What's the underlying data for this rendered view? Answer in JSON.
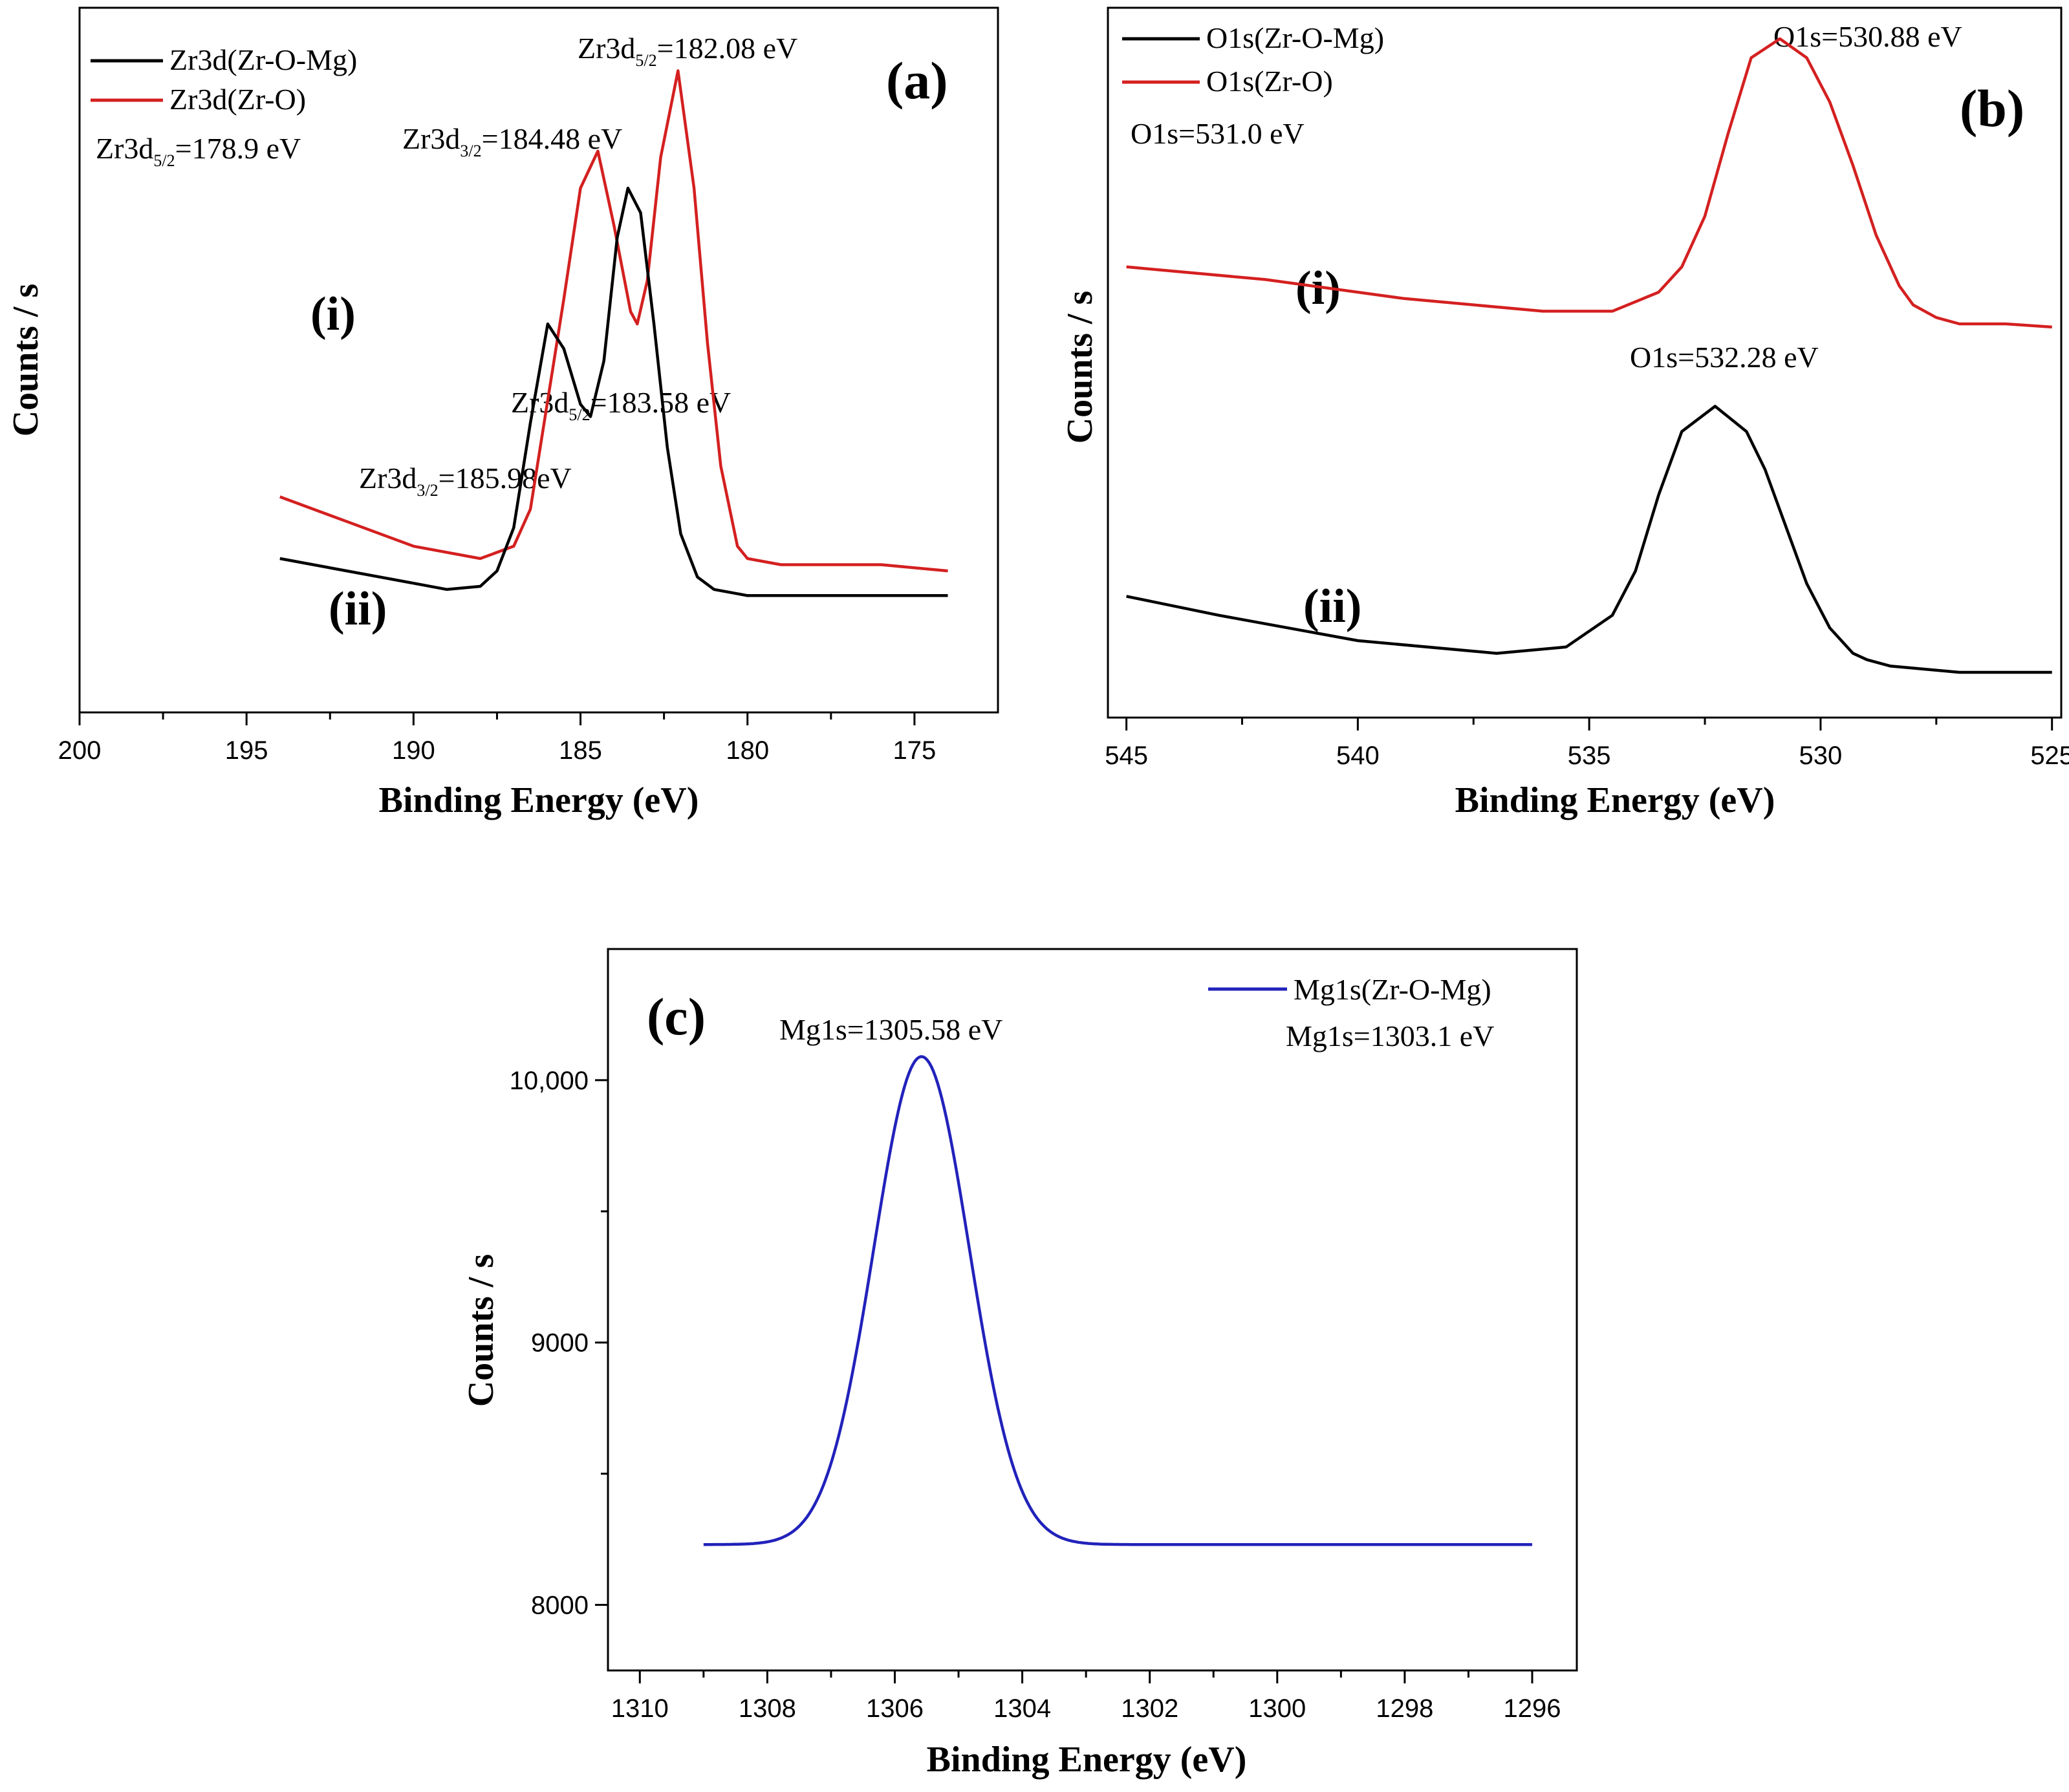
{
  "chart_data": [
    {
      "panel": "(a)",
      "type": "line",
      "xlabel": "Binding Energy (eV)",
      "ylabel": "Counts / s",
      "xlim": [
        200,
        172.5
      ],
      "x_ticks": [
        "200",
        "195",
        "190",
        "185",
        "180",
        "175"
      ],
      "y_ticks": [],
      "legend": {
        "position": "top-left",
        "entries": [
          {
            "label": "Zr3d(Zr-O-Mg)",
            "color": "#000000"
          },
          {
            "label": "Zr3d(Zr-O)",
            "color": "#d42020"
          }
        ],
        "note": {
          "main": "Zr3d",
          "sub": "5/2",
          "rest": "=178.9 eV"
        }
      },
      "series": [
        {
          "name": "Zr3d(Zr-O)",
          "curve_label": "(i)",
          "color": "#d42020",
          "x": [
            194,
            192,
            190,
            188,
            187,
            186.5,
            186,
            185.5,
            185,
            184.48,
            184,
            183.5,
            183.3,
            183,
            182.6,
            182.08,
            181.6,
            181.2,
            180.8,
            180.3,
            180,
            179,
            178,
            176,
            174
          ],
          "y": [
            0.3,
            0.26,
            0.22,
            0.2,
            0.22,
            0.28,
            0.45,
            0.62,
            0.8,
            0.86,
            0.74,
            0.6,
            0.58,
            0.65,
            0.85,
            0.99,
            0.8,
            0.55,
            0.35,
            0.22,
            0.2,
            0.19,
            0.19,
            0.19,
            0.18
          ]
        },
        {
          "name": "Zr3d(Zr-O-Mg)",
          "curve_label": "(ii)",
          "color": "#000000",
          "x": [
            194,
            192,
            190,
            189,
            188,
            187.5,
            187,
            186.5,
            185.98,
            185.5,
            185,
            184.7,
            184.3,
            183.9,
            183.58,
            183.2,
            182.8,
            182.4,
            182,
            181.5,
            181,
            180,
            178,
            176,
            174
          ],
          "y": [
            0.2,
            0.18,
            0.16,
            0.15,
            0.155,
            0.18,
            0.25,
            0.42,
            0.58,
            0.54,
            0.45,
            0.43,
            0.52,
            0.72,
            0.8,
            0.76,
            0.58,
            0.38,
            0.24,
            0.17,
            0.15,
            0.14,
            0.14,
            0.14,
            0.14
          ]
        }
      ],
      "annotations": [
        {
          "main": "Zr3d",
          "sub": "5/2",
          "rest": "=182.08 eV"
        },
        {
          "main": "Zr3d",
          "sub": "3/2",
          "rest": "=184.48 eV"
        },
        {
          "main": "Zr3d",
          "sub": "5/2",
          "rest": "=183.58 eV"
        },
        {
          "main": "Zr3d",
          "sub": "3/2",
          "rest": "=185.98eV"
        }
      ]
    },
    {
      "panel": "(b)",
      "type": "line",
      "xlabel": "Binding Energy (eV)",
      "ylabel": "Counts / s",
      "xlim": [
        545.4,
        524.8
      ],
      "x_ticks": [
        "545",
        "540",
        "535",
        "530",
        "525"
      ],
      "y_ticks": [],
      "legend": {
        "position": "top-left",
        "entries": [
          {
            "label": "O1s(Zr-O-Mg)",
            "color": "#000000"
          },
          {
            "label": "O1s(Zr-O)",
            "color": "#d42020"
          }
        ],
        "note": {
          "main": "O1s=531.0 eV"
        }
      },
      "series": [
        {
          "name": "O1s(Zr-O)",
          "curve_label": "(i)",
          "color": "#d42020",
          "x": [
            545,
            542,
            539,
            536,
            534.5,
            533.5,
            533,
            532.5,
            532,
            531.5,
            530.88,
            530.3,
            529.8,
            529.3,
            528.8,
            528.3,
            528,
            527.5,
            527,
            526,
            525
          ],
          "y": [
            0.64,
            0.62,
            0.59,
            0.57,
            0.57,
            0.6,
            0.64,
            0.72,
            0.85,
            0.97,
            1.0,
            0.97,
            0.9,
            0.8,
            0.69,
            0.61,
            0.58,
            0.56,
            0.55,
            0.55,
            0.545
          ]
        },
        {
          "name": "O1s(Zr-O-Mg)",
          "curve_label": "(ii)",
          "color": "#000000",
          "x": [
            545,
            543,
            540,
            537,
            535.5,
            534.5,
            534,
            533.5,
            533,
            532.28,
            531.6,
            531.2,
            530.8,
            530.3,
            529.8,
            529.3,
            529,
            528.5,
            527,
            525
          ],
          "y": [
            0.12,
            0.09,
            0.05,
            0.03,
            0.04,
            0.09,
            0.16,
            0.28,
            0.38,
            0.42,
            0.38,
            0.32,
            0.24,
            0.14,
            0.07,
            0.03,
            0.02,
            0.01,
            0.0,
            0.0
          ]
        }
      ],
      "annotations": [
        {
          "main": "O1s=530.88 eV"
        },
        {
          "main": "O1s=532.28 eV"
        }
      ]
    },
    {
      "panel": "(c)",
      "type": "line",
      "xlabel": "Binding Energy (eV)",
      "ylabel": "Counts / s",
      "xlim": [
        1310.5,
        1295.3
      ],
      "ylim": [
        7750,
        10500
      ],
      "x_ticks": [
        "1310",
        "1308",
        "1306",
        "1304",
        "1302",
        "1300",
        "1298",
        "1296"
      ],
      "y_ticks": [
        "8000",
        "9000",
        "10,000"
      ],
      "y_tick_values": [
        8000,
        9000,
        10000
      ],
      "legend": {
        "position": "top-right",
        "entries": [
          {
            "label": "Mg1s(Zr-O-Mg)",
            "color": "#2222bb"
          }
        ],
        "note": {
          "main": "Mg1s=1303.1 eV"
        }
      },
      "series": [
        {
          "name": "Mg1s(Zr-O-Mg)",
          "color": "#2222bb",
          "peak_center": 1305.58,
          "peak_height": 10090,
          "baseline": 8230,
          "sigma": 0.75,
          "x_range": [
            1309,
            1296
          ]
        }
      ],
      "annotations": [
        {
          "main": "Mg1s=1305.58 eV"
        }
      ]
    }
  ]
}
